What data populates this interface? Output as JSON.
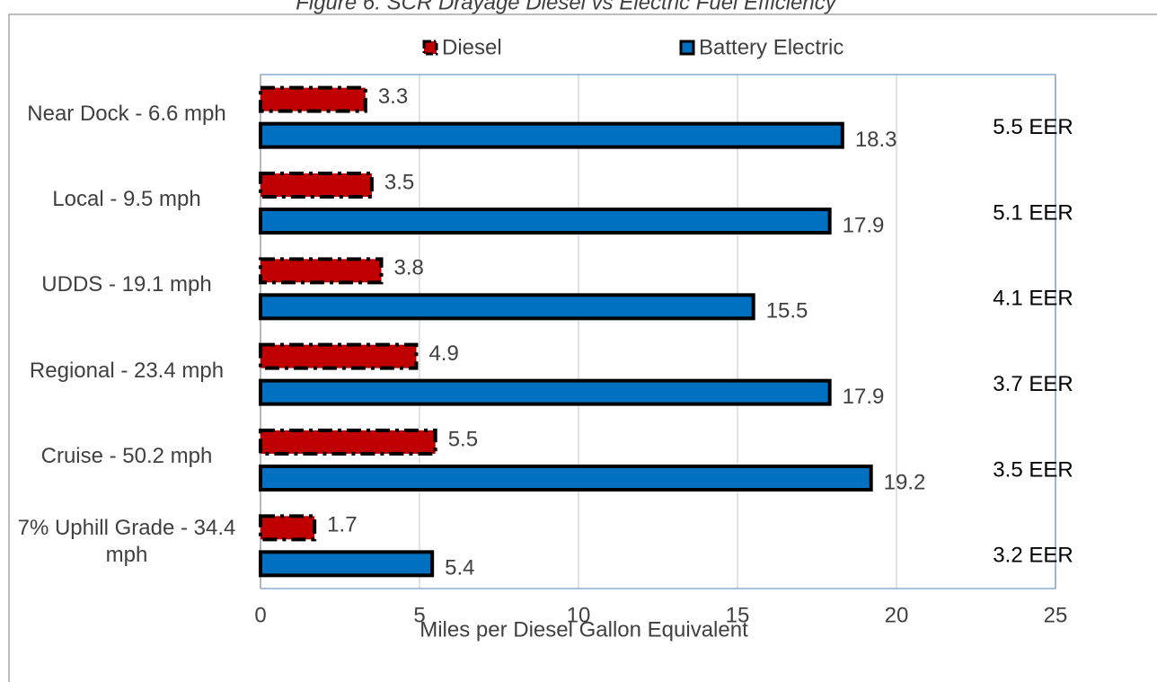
{
  "chart_data": {
    "type": "bar",
    "orientation": "horizontal",
    "title": "Figure 6: SCR Drayage Diesel vs Electric Fuel Efficiency",
    "categories": [
      "Near Dock - 6.6 mph",
      "Local - 9.5 mph",
      "UDDS - 19.1 mph",
      "Regional - 23.4 mph",
      "Cruise - 50.2 mph",
      "7% Uphill Grade - 34.4 mph"
    ],
    "series": [
      {
        "name": "Diesel",
        "color": "#c00000",
        "values": [
          3.3,
          3.5,
          3.8,
          4.9,
          5.5,
          1.7
        ]
      },
      {
        "name": "Battery Electric",
        "color": "#0070c0",
        "values": [
          18.3,
          17.9,
          15.5,
          17.9,
          19.2,
          5.4
        ]
      }
    ],
    "annotations": [
      "5.5 EER",
      "5.1 EER",
      "4.1 EER",
      "3.7 EER",
      "3.5 EER",
      "3.2 EER"
    ],
    "xlabel": "Miles per Diesel Gallon Equivalent",
    "xlim": [
      0,
      25
    ],
    "xticks": [
      0,
      5,
      10,
      15,
      20,
      25
    ],
    "grid": true,
    "legend": "top"
  }
}
